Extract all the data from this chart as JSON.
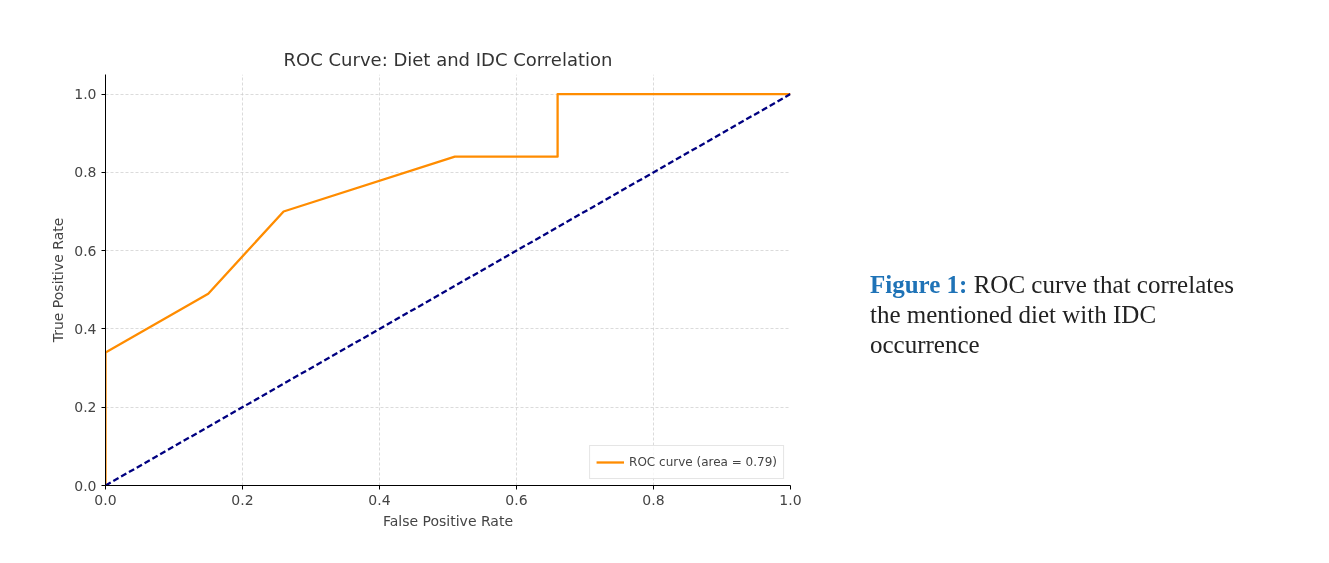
{
  "chart_data": {
    "type": "line",
    "title": "ROC Curve: Diet and IDC Correlation",
    "xlabel": "False Positive Rate",
    "ylabel": "True Positive Rate",
    "annotations": [
      "Figure 1:",
      "ROC curve that correlates the mentioned diet with IDC occurrence"
    ],
    "series": [
      {
        "name": "ROC curve (area = 0.79)",
        "color": "#ff8c00",
        "line_style": "solid",
        "x": [
          0,
          0,
          0.15,
          0.26,
          0.51,
          0.66,
          0.66,
          1.0
        ],
        "values": [
          0,
          0.34,
          0.49,
          0.7,
          0.84,
          0.84,
          1.0,
          1.0
        ]
      },
      {
        "color": "#000080",
        "line_style": "dashed",
        "x": [
          0,
          1
        ],
        "values": [
          0,
          1
        ]
      }
    ],
    "xlim": [
      0,
      1
    ],
    "ylim": [
      0,
      1.05
    ],
    "xticks": [
      {
        "value": 0,
        "label": "0.0"
      },
      {
        "value": 0.2,
        "label": "0.2"
      },
      {
        "value": 0.4,
        "label": "0.4"
      },
      {
        "value": 0.6,
        "label": "0.6"
      },
      {
        "value": 0.8,
        "label": "0.8"
      },
      {
        "value": 1,
        "label": "1.0"
      }
    ],
    "yticks": [
      {
        "value": 0,
        "label": "0.0"
      },
      {
        "value": 0.2,
        "label": "0.2"
      },
      {
        "value": 0.4,
        "label": "0.4"
      },
      {
        "value": 0.6,
        "label": "0.6"
      },
      {
        "value": 0.8,
        "label": "0.8"
      },
      {
        "value": 1,
        "label": "1.0"
      }
    ],
    "grid": true,
    "legend": "bottom right"
  }
}
